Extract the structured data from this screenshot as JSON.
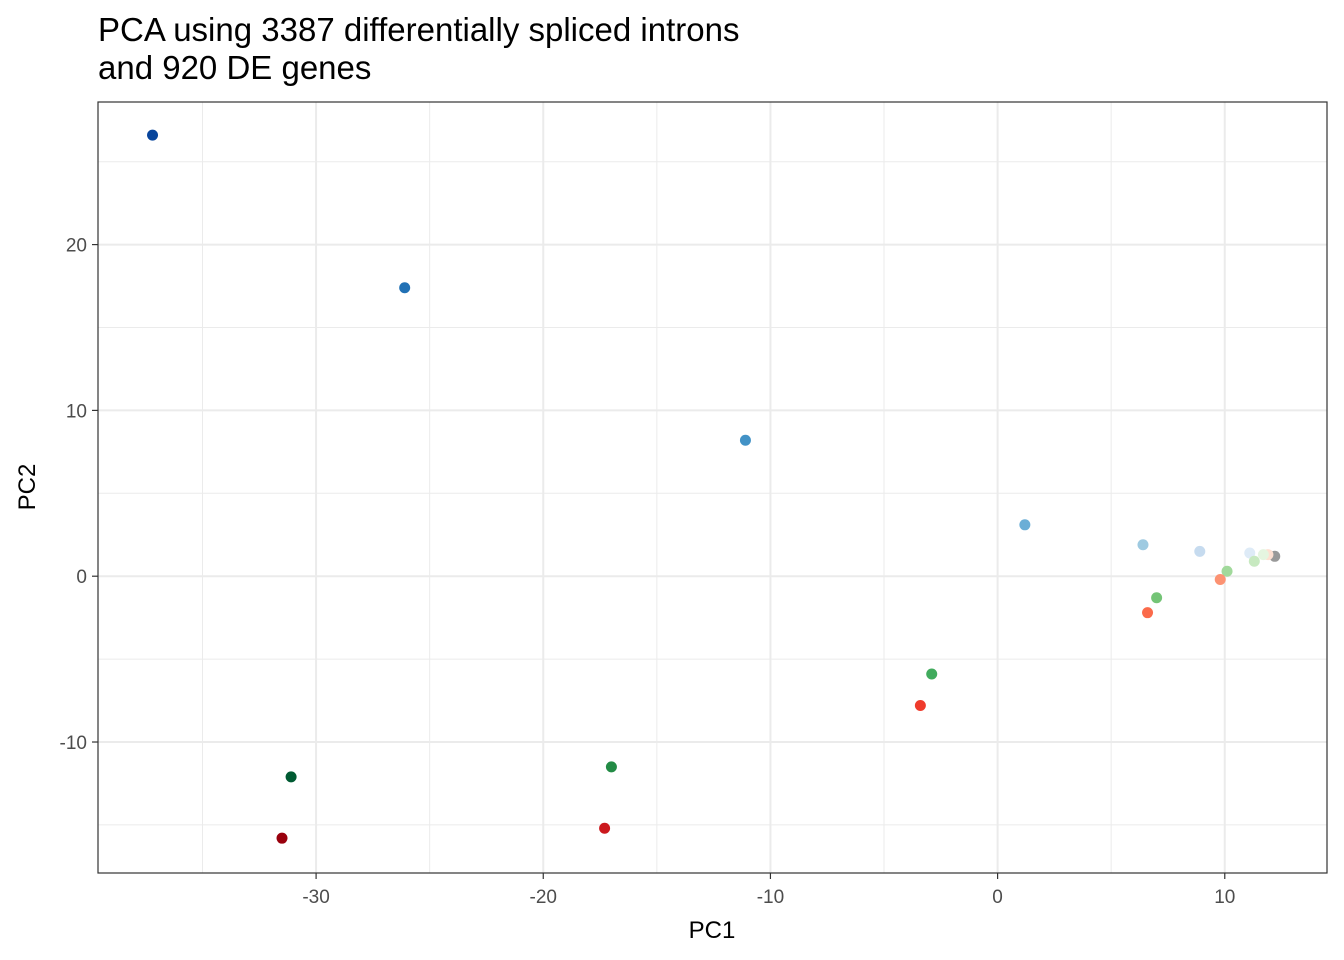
{
  "chart_data": {
    "type": "scatter",
    "title_lines": [
      "PCA using 3387 differentially spliced introns",
      "and 920 DE genes"
    ],
    "xlabel": "PC1",
    "ylabel": "PC2",
    "xlim": [
      -39.6,
      14.5
    ],
    "ylim": [
      -17.9,
      28.6
    ],
    "grid": true,
    "x_major_ticks": [
      -30,
      -20,
      -10,
      0,
      10
    ],
    "x_tick_labels": [
      "-30",
      "-20",
      "-10",
      "0",
      "10"
    ],
    "x_minor_ticks": [
      -35,
      -25,
      -15,
      -5,
      5
    ],
    "y_major_ticks": [
      -10,
      0,
      10,
      20
    ],
    "y_tick_labels": [
      "-10",
      "0",
      "10",
      "20"
    ],
    "y_minor_ticks": [
      -15,
      -5,
      5,
      15,
      25
    ],
    "points": [
      {
        "x": 12.2,
        "y": 1.2,
        "color": "#999999"
      },
      {
        "x": 11.9,
        "y": 1.3,
        "color": "#fee0d2"
      },
      {
        "x": 11.7,
        "y": 1.3,
        "color": "#e5f5e0"
      },
      {
        "x": 11.1,
        "y": 1.4,
        "color": "#deebf7"
      },
      {
        "x": 8.9,
        "y": 1.5,
        "color": "#c6dbef"
      },
      {
        "x": 6.4,
        "y": 1.9,
        "color": "#9ecae1"
      },
      {
        "x": 1.2,
        "y": 3.1,
        "color": "#6baed6"
      },
      {
        "x": -11.1,
        "y": 8.2,
        "color": "#4292c6"
      },
      {
        "x": -26.1,
        "y": 17.4,
        "color": "#2171b5"
      },
      {
        "x": -37.2,
        "y": 26.6,
        "color": "#08459c"
      },
      {
        "x": 11.3,
        "y": 0.9,
        "color": "#c7e9c0"
      },
      {
        "x": 10.1,
        "y": 0.3,
        "color": "#a1d99b"
      },
      {
        "x": 7.0,
        "y": -1.3,
        "color": "#74c476"
      },
      {
        "x": -2.9,
        "y": -5.9,
        "color": "#41ab5d"
      },
      {
        "x": -17.0,
        "y": -11.5,
        "color": "#238b45"
      },
      {
        "x": -31.1,
        "y": -12.1,
        "color": "#005a32"
      },
      {
        "x": 9.8,
        "y": -0.2,
        "color": "#fc9272"
      },
      {
        "x": 6.6,
        "y": -2.2,
        "color": "#fb6a4a"
      },
      {
        "x": -3.4,
        "y": -7.8,
        "color": "#ef3b2c"
      },
      {
        "x": -17.3,
        "y": -15.2,
        "color": "#cb181d"
      },
      {
        "x": -31.5,
        "y": -15.8,
        "color": "#99000d"
      }
    ]
  }
}
